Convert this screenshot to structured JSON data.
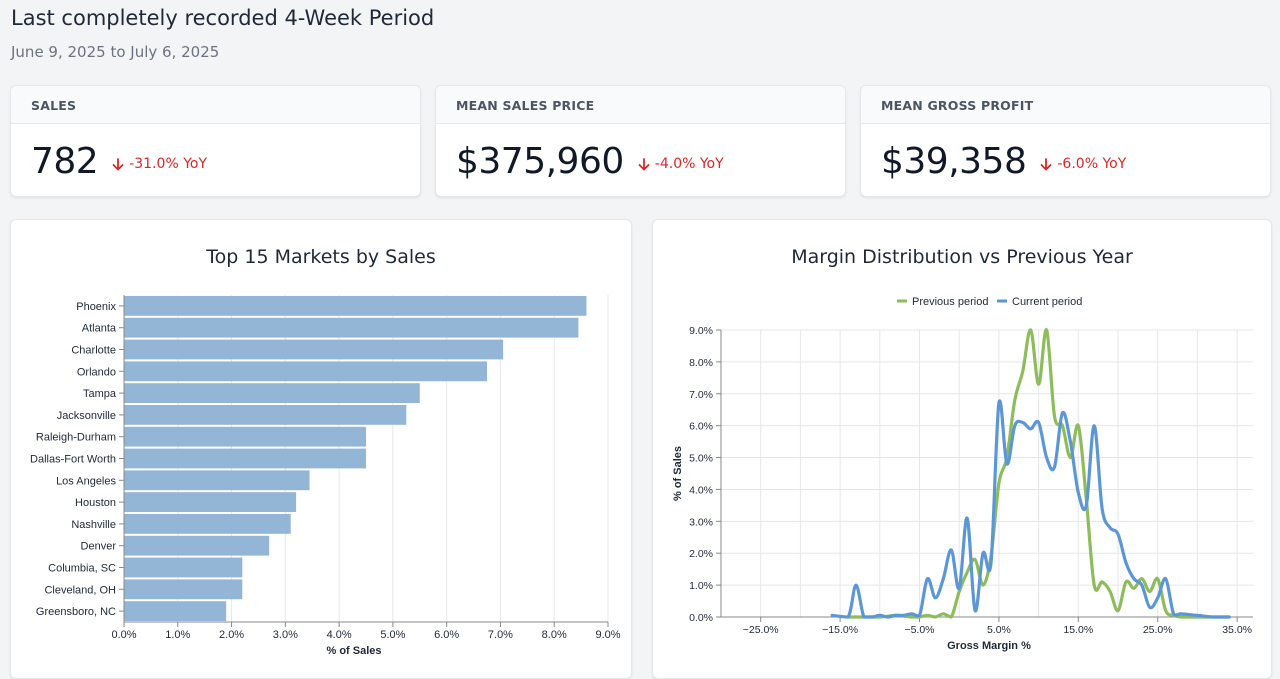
{
  "header": {
    "title": "Last completely recorded 4-Week Period",
    "date_range": "June 9, 2025 to July 6, 2025"
  },
  "kpis": [
    {
      "label": "SALES",
      "value": "782",
      "change": "-31.0% YoY",
      "direction": "down"
    },
    {
      "label": "MEAN SALES PRICE",
      "value": "$375,960",
      "change": "-4.0% YoY",
      "direction": "down"
    },
    {
      "label": "MEAN GROSS PROFIT",
      "value": "$39,358",
      "change": "-6.0% YoY",
      "direction": "down"
    }
  ],
  "colors": {
    "negative": "#dc2626",
    "bar": "#94b6d6",
    "previous": "#8dbd5b",
    "current": "#5b97d6"
  },
  "chart_data": [
    {
      "type": "bar",
      "orientation": "horizontal",
      "title": "Top 15 Markets by Sales",
      "xlabel": "% of Sales",
      "ylabel": "",
      "xlim": [
        0,
        9
      ],
      "xticks": [
        "0.0%",
        "1.0%",
        "2.0%",
        "3.0%",
        "4.0%",
        "5.0%",
        "6.0%",
        "7.0%",
        "8.0%",
        "9.0%"
      ],
      "categories": [
        "Phoenix",
        "Atlanta",
        "Charlotte",
        "Orlando",
        "Tampa",
        "Jacksonville",
        "Raleigh-Durham",
        "Dallas-Fort Worth",
        "Los Angeles",
        "Houston",
        "Nashville",
        "Denver",
        "Columbia, SC",
        "Cleveland, OH",
        "Greensboro, NC"
      ],
      "values": [
        8.6,
        8.45,
        7.05,
        6.75,
        5.5,
        5.25,
        4.5,
        4.5,
        3.45,
        3.2,
        3.1,
        2.7,
        2.2,
        2.2,
        1.9
      ]
    },
    {
      "type": "line",
      "title": "Margin Distribution vs Previous Year",
      "xlabel": "Gross Margin %",
      "ylabel": "% of Sales",
      "xlim": [
        -30,
        37
      ],
      "ylim": [
        0,
        9
      ],
      "xticks": [
        {
          "v": -25,
          "label": "−25.0%"
        },
        {
          "v": -15,
          "label": "−15.0%"
        },
        {
          "v": -5,
          "label": "−5.0%"
        },
        {
          "v": 5,
          "label": "5.0%"
        },
        {
          "v": 15,
          "label": "15.0%"
        },
        {
          "v": 25,
          "label": "25.0%"
        },
        {
          "v": 35,
          "label": "35.0%"
        }
      ],
      "yticks": [
        "0.0%",
        "1.0%",
        "2.0%",
        "3.0%",
        "4.0%",
        "5.0%",
        "6.0%",
        "7.0%",
        "8.0%",
        "9.0%"
      ],
      "legend": [
        "Previous period",
        "Current period"
      ],
      "series": [
        {
          "name": "Previous period",
          "x": [
            -14,
            -10,
            -8,
            -6,
            -5,
            -4,
            -3,
            -2,
            -1,
            0,
            1,
            2,
            3,
            4,
            5,
            6,
            7,
            8,
            9,
            10,
            11,
            12,
            13,
            14,
            15,
            16,
            17,
            18,
            19,
            20,
            21,
            22,
            23,
            24,
            25,
            26,
            27,
            28,
            30,
            32,
            34
          ],
          "values": [
            0,
            0,
            0.05,
            0,
            0,
            0.05,
            0,
            0.1,
            0,
            0.8,
            1.4,
            1.8,
            1.0,
            1.9,
            4.2,
            5.0,
            6.8,
            7.7,
            9.0,
            7.3,
            9.0,
            6.3,
            6.0,
            5.0,
            6.0,
            3.7,
            1.0,
            1.1,
            0.8,
            0.2,
            1.1,
            0.9,
            1.2,
            0.8,
            1.2,
            0.2,
            0.05,
            0,
            0,
            0,
            0
          ]
        },
        {
          "name": "Current period",
          "x": [
            -16,
            -14,
            -13,
            -12,
            -11,
            -10,
            -9,
            -8,
            -7,
            -6,
            -5,
            -4,
            -3,
            -2,
            -1,
            0,
            1,
            2,
            3,
            4,
            5,
            6,
            7,
            8,
            9,
            10,
            11,
            12,
            13,
            14,
            15,
            16,
            17,
            18,
            19,
            20,
            21,
            22,
            23,
            24,
            25,
            26,
            27,
            28,
            30,
            32,
            34
          ],
          "values": [
            0.05,
            0,
            1.0,
            0,
            0,
            0.05,
            0,
            0.05,
            0.05,
            0.1,
            0.05,
            1.2,
            0.6,
            1.2,
            2.1,
            0.9,
            3.1,
            0.2,
            2.0,
            1.7,
            6.7,
            4.8,
            6.0,
            6.1,
            5.9,
            6.1,
            5.0,
            4.7,
            6.4,
            5.5,
            3.9,
            3.5,
            6.0,
            3.4,
            2.8,
            2.6,
            1.7,
            1.2,
            1.0,
            0.3,
            0.6,
            1.2,
            0.1,
            0.1,
            0.05,
            0,
            0
          ]
        }
      ]
    }
  ]
}
